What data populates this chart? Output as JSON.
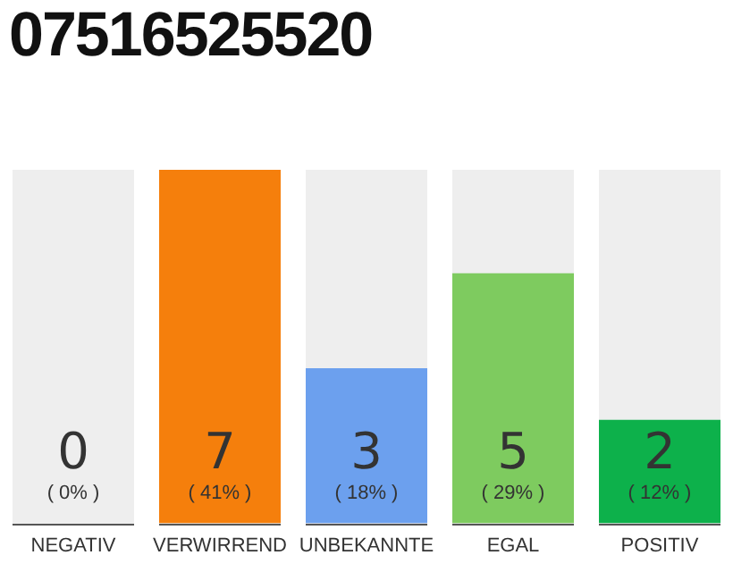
{
  "chart_data": {
    "type": "bar",
    "title": "07516525520",
    "categories": [
      "NEGATIV",
      "VERWIRREND",
      "UNBEKANNTE",
      "EGAL",
      "POSITIV"
    ],
    "values": [
      0,
      41,
      18,
      29,
      12
    ],
    "colors": [
      "#e0e0e0",
      "#f57f0c",
      "#6ca0ee",
      "#7ecb5f",
      "#0db14b"
    ],
    "value_labels": [
      "( 0% )",
      "( 41% )",
      "( 18% )",
      "( 29% )",
      "( 12% )"
    ],
    "annotations": [
      "0",
      "7",
      "3",
      "5",
      "2"
    ],
    "tick_labels": "x",
    "grid": false,
    "legend": false
  }
}
